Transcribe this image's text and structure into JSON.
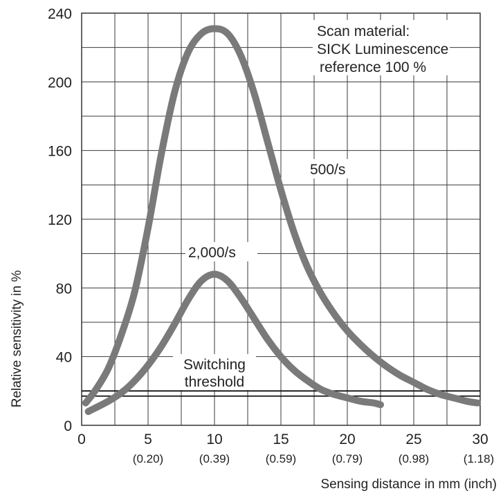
{
  "chart_data": {
    "type": "line",
    "title": "",
    "xlabel": "Sensing distance in mm (inch)",
    "ylabel": "Relative sensitivity in %",
    "xlim": [
      0,
      30
    ],
    "ylim": [
      0,
      240
    ],
    "x_ticks": [
      0,
      5,
      10,
      15,
      20,
      25,
      30
    ],
    "x_tick_labels": [
      "0",
      "5",
      "10",
      "15",
      "20",
      "25",
      "30"
    ],
    "x_tick_sublabels": [
      "",
      "(0.20)",
      "(0.39)",
      "(0.59)",
      "(0.79)",
      "(0.98)",
      "(1.18)"
    ],
    "y_ticks": [
      0,
      40,
      80,
      120,
      160,
      200,
      240
    ],
    "y_tick_labels": [
      "0",
      "40",
      "80",
      "120",
      "160",
      "200",
      "240"
    ],
    "grid": true,
    "line_color": "#7a7a7a",
    "annotations": {
      "material_line1": "Scan material:",
      "material_line2": "SICK Luminescence",
      "material_line3": "reference 100 %",
      "threshold_line1": "Switching",
      "threshold_line2": "threshold"
    },
    "threshold": {
      "y1": 17,
      "y2": 20
    },
    "series": [
      {
        "name": "500/s",
        "x": [
          0.3,
          1,
          2,
          3,
          4,
          5,
          6,
          7,
          8,
          9,
          10,
          11,
          12,
          13,
          14,
          15,
          16,
          17,
          18,
          19,
          20,
          21,
          22,
          23,
          24,
          25,
          26,
          27,
          28,
          29,
          29.8
        ],
        "y": [
          13,
          20,
          33,
          53,
          78,
          115,
          158,
          194,
          217,
          228,
          231,
          228,
          215,
          193,
          165,
          137,
          112,
          92,
          77,
          65,
          55,
          47,
          40,
          34,
          29,
          25,
          21,
          18,
          16,
          14,
          13
        ]
      },
      {
        "name": "2,000/s",
        "x": [
          0.5,
          1,
          2,
          3,
          4,
          5,
          6,
          7,
          8,
          9,
          10,
          11,
          12,
          13,
          14,
          15,
          16,
          17,
          18,
          19,
          20,
          21,
          22,
          22.5
        ],
        "y": [
          8,
          10,
          14,
          19,
          26,
          35,
          46,
          59,
          73,
          84,
          88,
          84,
          74,
          62,
          50,
          40,
          32,
          26,
          21,
          18,
          16,
          14,
          13,
          12
        ]
      }
    ]
  }
}
